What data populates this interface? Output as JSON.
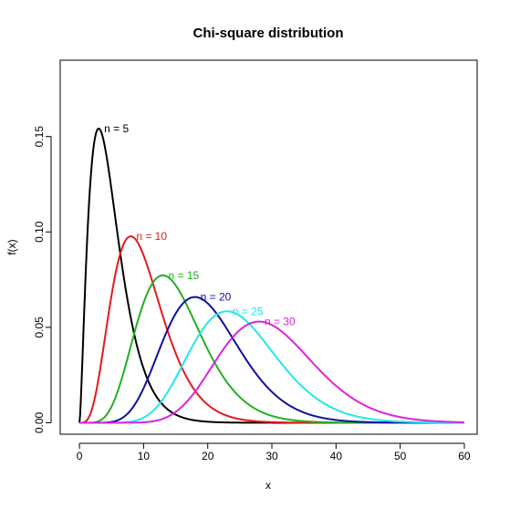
{
  "chart_data": {
    "type": "line",
    "title": "Chi-square distribution",
    "xlabel": "x",
    "ylabel": "f(x)",
    "xlim": [
      -3,
      62
    ],
    "ylim": [
      -0.006,
      0.19
    ],
    "x_ticks": [
      0,
      10,
      20,
      30,
      40,
      50,
      60
    ],
    "x_tick_labels": [
      "0",
      "10",
      "20",
      "30",
      "40",
      "50",
      "60"
    ],
    "y_ticks": [
      0.0,
      0.05,
      0.1,
      0.15
    ],
    "y_tick_labels": [
      "0.00",
      "0.05",
      "0.10",
      "0.15"
    ],
    "x_range": [
      0,
      60
    ],
    "grid": false,
    "series": [
      {
        "name": "n = 5",
        "df": 5,
        "color": "#000000"
      },
      {
        "name": "n = 10",
        "df": 10,
        "color": "#e31a1c"
      },
      {
        "name": "n = 15",
        "df": 15,
        "color": "#22b022"
      },
      {
        "name": "n = 20",
        "df": 20,
        "color": "#1010a0"
      },
      {
        "name": "n = 25",
        "df": 25,
        "color": "#22e6ee"
      },
      {
        "name": "n = 30",
        "df": 30,
        "color": "#dd22dd"
      }
    ]
  }
}
